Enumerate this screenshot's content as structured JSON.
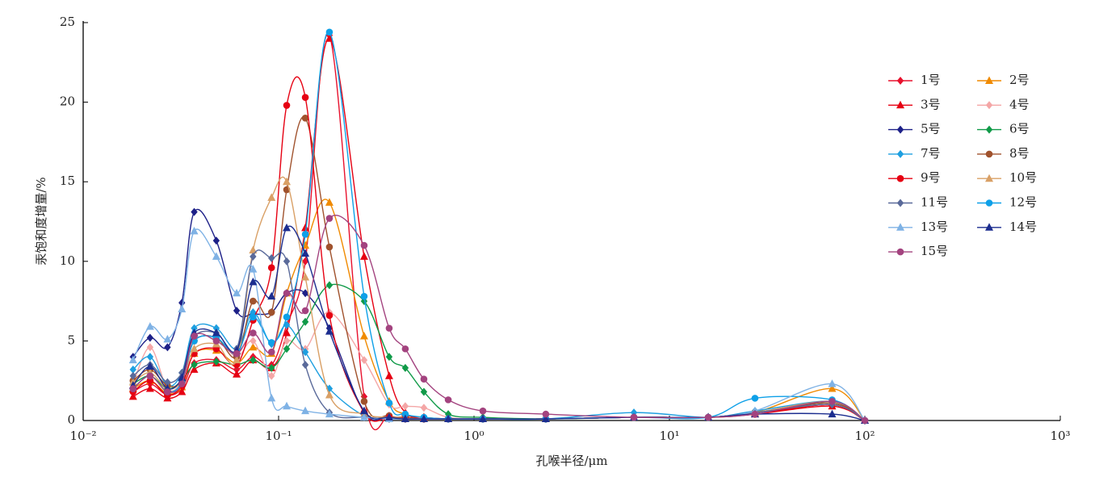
{
  "chart_data": {
    "type": "line",
    "xscale": "log",
    "grid": false,
    "legend": "right",
    "xlabel": "孔喉半径/μm",
    "ylabel": "汞饱和度增量/%",
    "x": [
      0.018,
      0.022,
      0.027,
      0.032,
      0.037,
      0.048,
      0.061,
      0.074,
      0.092,
      0.11,
      0.137,
      0.182,
      0.274,
      0.368,
      0.445,
      0.554,
      0.738,
      1.11,
      2.33,
      6.58,
      15.8,
      27.4,
      68,
      100
    ],
    "xlim": [
      0.01,
      1000
    ],
    "xticks": [
      {
        "value": 0.01,
        "label": "10⁻²"
      },
      {
        "value": 0.1,
        "label": "10⁻¹"
      },
      {
        "value": 1,
        "label": "10⁰"
      },
      {
        "value": 10,
        "label": "10¹"
      },
      {
        "value": 100,
        "label": "10²"
      },
      {
        "value": 1000,
        "label": "10³"
      }
    ],
    "ylim": [
      0,
      25
    ],
    "yticks": [
      0,
      5,
      10,
      15,
      20,
      25
    ],
    "series": [
      {
        "name": "1号",
        "color": "#e8112d",
        "marker": "diamond",
        "values": [
          1.8,
          2.3,
          1.6,
          2.0,
          3.6,
          3.8,
          3.2,
          4.0,
          3.5,
          6.0,
          10.0,
          24.2,
          1.5,
          0.3,
          0.2,
          0.1,
          0.1,
          0.1,
          0.1,
          0.2,
          0.2,
          0.4,
          1.0,
          0
        ]
      },
      {
        "name": "2号",
        "color": "#f08a00",
        "marker": "triangle",
        "values": [
          2.0,
          2.5,
          1.7,
          2.1,
          4.2,
          4.4,
          3.6,
          4.6,
          4.2,
          8.0,
          11.0,
          13.7,
          5.3,
          1.2,
          0.4,
          0.2,
          0.1,
          0.1,
          0.1,
          0.2,
          0.2,
          0.5,
          2.0,
          0
        ]
      },
      {
        "name": "3号",
        "color": "#e60012",
        "marker": "triangle",
        "values": [
          1.5,
          2.0,
          1.4,
          1.8,
          3.2,
          3.6,
          2.9,
          3.8,
          3.3,
          5.5,
          12.1,
          24.0,
          10.3,
          2.8,
          0.5,
          0.2,
          0.1,
          0.1,
          0.1,
          0.2,
          0.2,
          0.4,
          0.9,
          0
        ]
      },
      {
        "name": "4号",
        "color": "#f4a6a6",
        "marker": "diamond",
        "values": [
          2.3,
          4.6,
          2.0,
          2.5,
          5.0,
          5.2,
          4.0,
          5.0,
          2.8,
          5.0,
          4.5,
          6.8,
          3.8,
          1.0,
          0.9,
          0.8,
          0.2,
          0.1,
          0.1,
          0.2,
          0.2,
          0.5,
          1.0,
          0
        ]
      },
      {
        "name": "5号",
        "color": "#1d2088",
        "marker": "diamond",
        "values": [
          4.0,
          5.2,
          4.6,
          7.4,
          13.1,
          11.3,
          6.9,
          6.7,
          6.8,
          8.0,
          8.0,
          5.8,
          0.5,
          0.2,
          0.1,
          0.1,
          0.1,
          0.1,
          0.1,
          0.2,
          0.2,
          0.5,
          1.0,
          0
        ]
      },
      {
        "name": "6号",
        "color": "#109a48",
        "marker": "diamond",
        "values": [
          2.3,
          2.8,
          2.0,
          2.5,
          3.5,
          3.7,
          3.5,
          3.8,
          3.3,
          4.5,
          6.2,
          8.5,
          7.5,
          4.0,
          3.3,
          1.8,
          0.4,
          0.2,
          0.1,
          0.2,
          0.2,
          0.5,
          1.1,
          0
        ]
      },
      {
        "name": "7号",
        "color": "#1e9fe0",
        "marker": "diamond",
        "values": [
          3.2,
          4.0,
          2.2,
          3.0,
          5.8,
          5.8,
          4.5,
          6.8,
          4.8,
          6.0,
          4.3,
          2.0,
          0.3,
          0.2,
          0.1,
          0.1,
          0.1,
          0.1,
          0.1,
          0.5,
          0.2,
          0.6,
          1.2,
          0
        ]
      },
      {
        "name": "8号",
        "color": "#a0522d",
        "marker": "circle",
        "values": [
          2.5,
          3.2,
          2.2,
          2.5,
          5.0,
          5.2,
          4.0,
          7.5,
          6.8,
          14.5,
          19.0,
          10.9,
          1.2,
          0.3,
          0.2,
          0.1,
          0.1,
          0.1,
          0.1,
          0.2,
          0.2,
          0.5,
          1.1,
          0
        ]
      },
      {
        "name": "9号",
        "color": "#e60012",
        "marker": "circle",
        "values": [
          1.8,
          2.5,
          1.6,
          2.2,
          4.2,
          4.5,
          3.5,
          6.3,
          9.6,
          19.8,
          20.3,
          6.6,
          0.5,
          0.2,
          0.1,
          0.1,
          0.1,
          0.1,
          0.1,
          0.2,
          0.2,
          0.4,
          1.0,
          0
        ]
      },
      {
        "name": "10号",
        "color": "#d9a066",
        "marker": "triangle",
        "values": [
          2.4,
          3.0,
          2.0,
          2.5,
          4.5,
          4.8,
          3.8,
          10.7,
          14.0,
          15.0,
          9.0,
          1.6,
          0.4,
          0.2,
          0.1,
          0.1,
          0.1,
          0.1,
          0.1,
          0.2,
          0.2,
          0.5,
          1.2,
          0
        ]
      },
      {
        "name": "11号",
        "color": "#5a6a9a",
        "marker": "diamond",
        "values": [
          2.8,
          3.5,
          2.4,
          3.0,
          5.3,
          5.5,
          4.5,
          10.3,
          10.2,
          10.0,
          3.5,
          0.5,
          0.2,
          0.1,
          0.1,
          0.1,
          0.1,
          0.1,
          0.1,
          0.2,
          0.2,
          0.5,
          1.0,
          0
        ]
      },
      {
        "name": "12号",
        "color": "#0ea0e8",
        "marker": "circle",
        "values": [
          2.0,
          2.8,
          1.8,
          2.4,
          5.0,
          5.2,
          4.2,
          6.5,
          4.9,
          6.5,
          11.7,
          24.4,
          7.8,
          1.1,
          0.4,
          0.2,
          0.1,
          0.1,
          0.1,
          0.2,
          0.2,
          1.4,
          1.3,
          0
        ]
      },
      {
        "name": "13号",
        "color": "#7fb2e5",
        "marker": "triangle",
        "values": [
          3.8,
          5.9,
          5.1,
          7.0,
          11.9,
          10.3,
          8.0,
          9.5,
          1.4,
          0.9,
          0.6,
          0.4,
          0.2,
          0.1,
          0.1,
          0.1,
          0.1,
          0.1,
          0.1,
          0.2,
          0.2,
          0.6,
          2.3,
          0
        ]
      },
      {
        "name": "14号",
        "color": "#1c2d8f",
        "marker": "triangle",
        "values": [
          2.2,
          3.4,
          2.0,
          2.7,
          5.5,
          5.5,
          4.4,
          8.7,
          7.8,
          12.1,
          10.5,
          5.6,
          0.6,
          0.2,
          0.1,
          0.1,
          0.1,
          0.1,
          0.1,
          0.2,
          0.2,
          0.4,
          0.4,
          0
        ]
      },
      {
        "name": "15号",
        "color": "#a3437f",
        "marker": "circle",
        "values": [
          2.0,
          2.8,
          1.8,
          2.3,
          5.3,
          5.0,
          4.2,
          5.5,
          4.3,
          8.0,
          6.9,
          12.7,
          11.0,
          5.8,
          4.5,
          2.6,
          1.3,
          0.6,
          0.4,
          0.2,
          0.2,
          0.4,
          1.2,
          0
        ]
      }
    ]
  }
}
